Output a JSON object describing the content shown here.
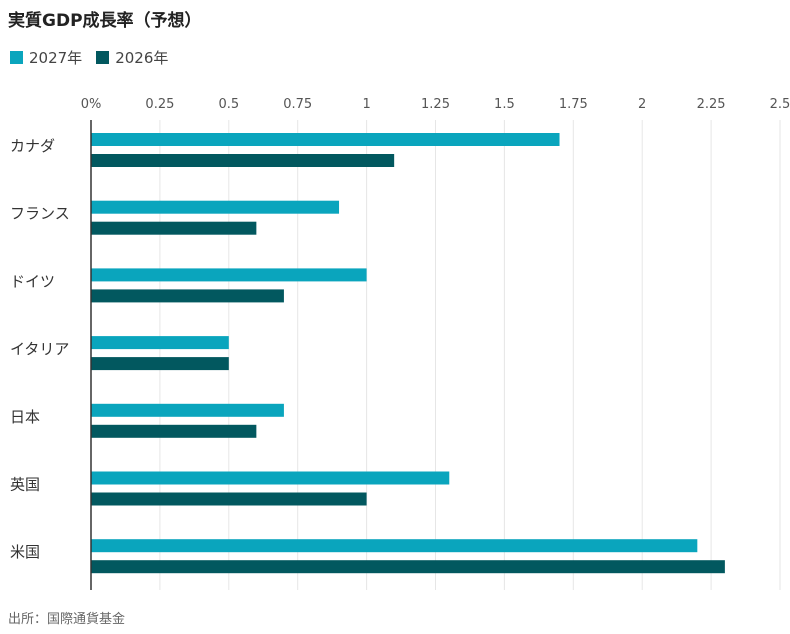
{
  "title": "実質GDP成長率（予想）",
  "source": "出所：国際通貨基金",
  "chart_data": {
    "type": "bar",
    "orientation": "horizontal",
    "title": "実質GDP成長率（予想）",
    "categories": [
      "カナダ",
      "フランス",
      "ドイツ",
      "イタリア",
      "日本",
      "英国",
      "米国"
    ],
    "series": [
      {
        "name": "2027年",
        "color": "#0aa5bd",
        "values": [
          1.7,
          0.9,
          1.0,
          0.5,
          0.7,
          1.3,
          2.2
        ]
      },
      {
        "name": "2026年",
        "color": "#02585f",
        "values": [
          1.1,
          0.6,
          0.7,
          0.5,
          0.6,
          1.0,
          2.3
        ]
      }
    ],
    "x_ticks": [
      "0%",
      "0.25",
      "0.5",
      "0.75",
      "1",
      "1.25",
      "1.5",
      "1.75",
      "2",
      "2.25",
      "2.5"
    ],
    "xlim": [
      0,
      2.5
    ],
    "grid": true,
    "legend_position": "top-left"
  }
}
